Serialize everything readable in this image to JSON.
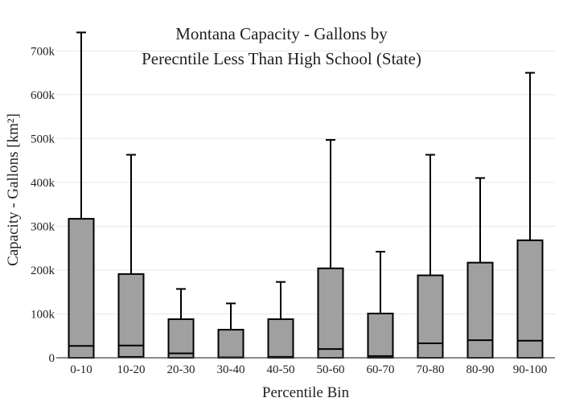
{
  "chart_data": {
    "type": "box",
    "title_lines": [
      "Montana Capacity - Gallons by",
      "Perecntile Less Than High School (State)"
    ],
    "xlabel": "Percentile Bin",
    "ylabel": "Capacity - Gallons  [km²]",
    "ylim": [
      0,
      750000
    ],
    "yticks": [
      0,
      100000,
      200000,
      300000,
      400000,
      500000,
      600000,
      700000
    ],
    "ytick_labels": [
      "0",
      "100k",
      "200k",
      "300k",
      "400k",
      "500k",
      "600k",
      "700k"
    ],
    "grid": true,
    "box_fill": "#a0a0a0",
    "box_stroke": "#000000",
    "categories": [
      "0-10",
      "10-20",
      "20-30",
      "30-40",
      "40-50",
      "50-60",
      "60-70",
      "70-80",
      "80-90",
      "90-100"
    ],
    "boxes": [
      {
        "min": 0,
        "q1": 0,
        "median": 27000,
        "q3": 317000,
        "max": 742000
      },
      {
        "min": 0,
        "q1": 2000,
        "median": 28000,
        "q3": 191000,
        "max": 463000
      },
      {
        "min": 0,
        "q1": 0,
        "median": 10000,
        "q3": 88000,
        "max": 157000
      },
      {
        "min": 0,
        "q1": 0,
        "median": 1000,
        "q3": 64000,
        "max": 124000
      },
      {
        "min": 0,
        "q1": 0,
        "median": 2000,
        "q3": 88000,
        "max": 173000
      },
      {
        "min": 0,
        "q1": 0,
        "median": 20000,
        "q3": 204000,
        "max": 497000
      },
      {
        "min": 0,
        "q1": 0,
        "median": 4000,
        "q3": 101000,
        "max": 242000
      },
      {
        "min": 0,
        "q1": 0,
        "median": 33000,
        "q3": 188000,
        "max": 463000
      },
      {
        "min": 0,
        "q1": 0,
        "median": 40000,
        "q3": 217000,
        "max": 410000
      },
      {
        "min": 0,
        "q1": 0,
        "median": 39000,
        "q3": 268000,
        "max": 650000
      }
    ]
  }
}
